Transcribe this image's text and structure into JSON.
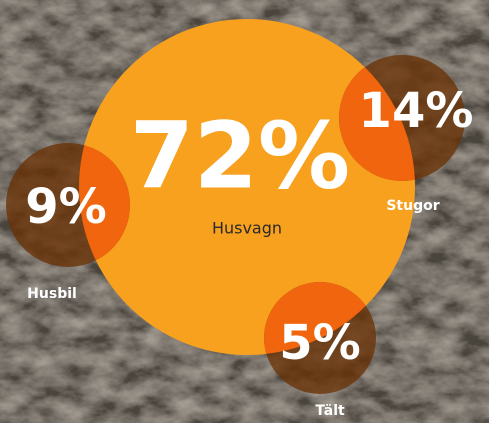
{
  "chart_data": {
    "type": "bubble",
    "categories": [
      "Husvagn",
      "Stugor",
      "Husbil",
      "Tält"
    ],
    "values": [
      72,
      14,
      9,
      5
    ],
    "value_labels": [
      "72%",
      "14%",
      "9%",
      "5%"
    ],
    "colors": [
      "#f8a11f",
      "#6a3206",
      "#6a3206",
      "#6a3206"
    ],
    "overlap_color": "#f0650e"
  }
}
